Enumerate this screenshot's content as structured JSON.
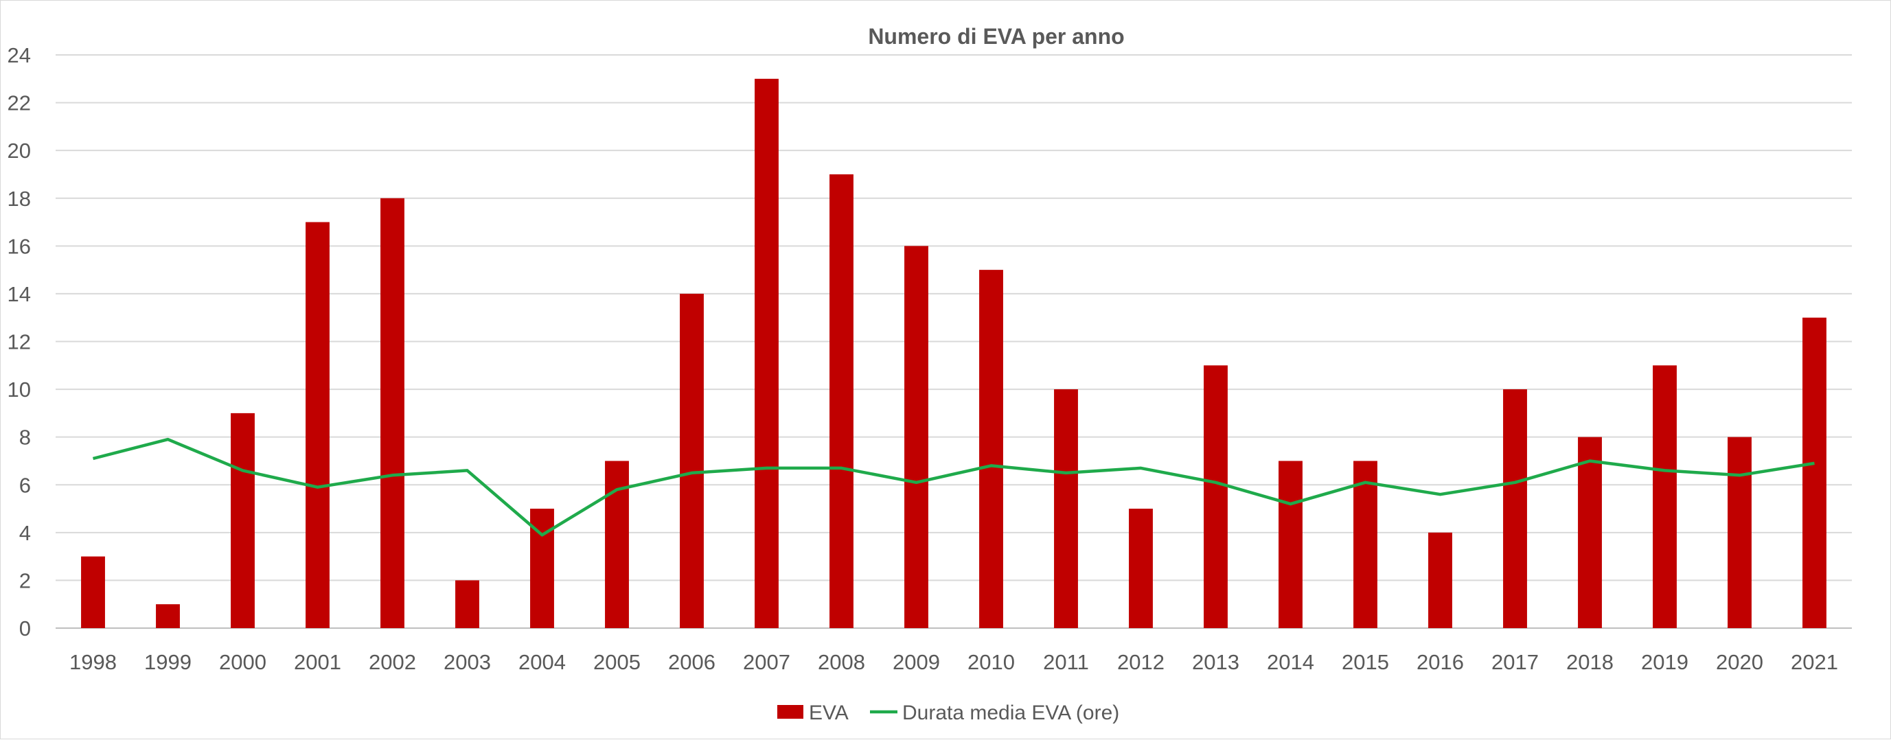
{
  "chart_data": {
    "type": "bar",
    "title": "Numero di EVA per anno",
    "xlabel": "",
    "ylabel": "",
    "categories": [
      "1998",
      "1999",
      "2000",
      "2001",
      "2002",
      "2003",
      "2004",
      "2005",
      "2006",
      "2007",
      "2008",
      "2009",
      "2010",
      "2011",
      "2012",
      "2013",
      "2014",
      "2015",
      "2016",
      "2017",
      "2018",
      "2019",
      "2020",
      "2021"
    ],
    "series": [
      {
        "name": "EVA",
        "type": "bar",
        "color": "#c00000",
        "values": [
          3,
          1,
          9,
          17,
          18,
          2,
          5,
          7,
          14,
          23,
          19,
          16,
          15,
          10,
          5,
          11,
          7,
          7,
          4,
          10,
          8,
          11,
          8,
          13
        ]
      },
      {
        "name": "Durata media EVA (ore)",
        "type": "line",
        "color": "#1faa4b",
        "values": [
          7.1,
          7.9,
          6.6,
          5.9,
          6.4,
          6.6,
          3.9,
          5.8,
          6.5,
          6.7,
          6.7,
          6.1,
          6.8,
          6.5,
          6.7,
          6.1,
          5.2,
          6.1,
          5.6,
          6.1,
          7.0,
          6.6,
          6.4,
          6.9
        ]
      }
    ],
    "ylim": [
      0,
      24
    ],
    "yticks": [
      0,
      2,
      4,
      6,
      8,
      10,
      12,
      14,
      16,
      18,
      20,
      22,
      24
    ],
    "grid": true,
    "legend_position": "bottom"
  }
}
